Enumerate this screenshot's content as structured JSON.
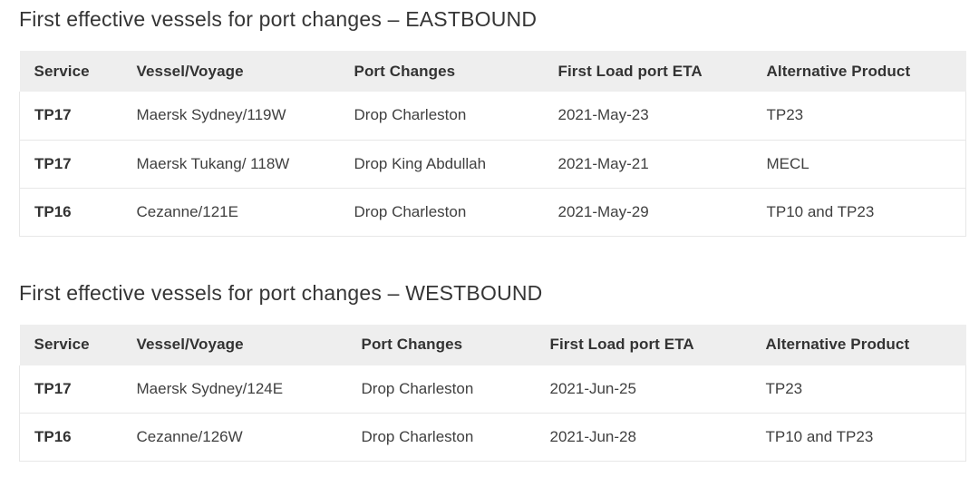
{
  "colors": {
    "header_background": "#eeeeee",
    "border": "#e7e7e7",
    "title_text": "#353535",
    "body_text": "#404040",
    "bold_text": "#333333",
    "page_background": "#ffffff"
  },
  "sections": [
    {
      "id": "eastbound",
      "title": "First effective vessels for port changes – EASTBOUND",
      "table": {
        "headers": [
          "Service",
          "Vessel/Voyage",
          "Port Changes",
          "First Load port ETA",
          "Alternative Product"
        ],
        "rows": [
          [
            "TP17",
            "Maersk Sydney/119W",
            "Drop Charleston",
            "2021-May-23",
            "TP23"
          ],
          [
            "TP17",
            "Maersk Tukang/ 118W",
            "Drop King Abdullah",
            "2021-May-21",
            "MECL"
          ],
          [
            "TP16",
            "Cezanne/121E",
            "Drop Charleston",
            "2021-May-29",
            "TP10 and TP23"
          ]
        ]
      }
    },
    {
      "id": "westbound",
      "title": "First effective vessels for port changes – WESTBOUND",
      "table": {
        "headers": [
          "Service",
          "Vessel/Voyage",
          "Port Changes",
          "First Load port ETA",
          "Alternative Product"
        ],
        "rows": [
          [
            "TP17",
            "Maersk Sydney/124E",
            "Drop Charleston",
            "2021-Jun-25",
            "TP23"
          ],
          [
            "TP16",
            "Cezanne/126W",
            "Drop Charleston",
            "2021-Jun-28",
            "TP10 and TP23"
          ]
        ]
      }
    }
  ]
}
